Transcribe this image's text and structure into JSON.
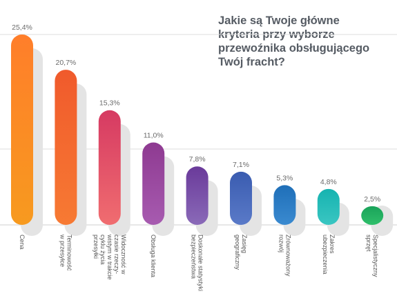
{
  "chart_data": {
    "type": "bar",
    "title_lines": [
      "Jakie są Twoje główne",
      "kryteria przy wyborze",
      "przewoźnika obsługującego",
      "Twój fracht?"
    ],
    "categories": [
      [
        "Cena"
      ],
      [
        "Terminowość",
        "w przesyłce"
      ],
      [
        "Widoczność w",
        "czasie rzeczy-",
        "wistym w trakcie",
        "cyklu życia",
        "przesyłki"
      ],
      [
        "Obsługa klienta"
      ],
      [
        "Doskonałe statystyki",
        "bezpieczeństwa"
      ],
      [
        "Zasięg",
        "geograficzny"
      ],
      [
        "Zrównoważony",
        "rozwój"
      ],
      [
        "Zakres",
        "ubezpieczenia"
      ],
      [
        "Specjalistyczny",
        "sprzęt"
      ]
    ],
    "values": [
      25.4,
      20.7,
      15.3,
      11.0,
      7.8,
      7.1,
      5.3,
      4.8,
      2.5
    ],
    "value_labels": [
      "25,4%",
      "20,7%",
      "15,3%",
      "11,0%",
      "7,8%",
      "7,1%",
      "5,3%",
      "4,8%",
      "2,5%"
    ],
    "ylim": [
      0,
      25.4
    ],
    "grid": true,
    "bar_colors": [
      [
        "#ff7e2a",
        "#f79a1f"
      ],
      [
        "#f05a2c",
        "#f77a33"
      ],
      [
        "#d63a62",
        "#f06d70"
      ],
      [
        "#8e3a91",
        "#a75bb0"
      ],
      [
        "#6a3a9a",
        "#8a6ab8"
      ],
      [
        "#3a5cb0",
        "#5a7ac8"
      ],
      [
        "#1f6fb8",
        "#3a8ad0"
      ],
      [
        "#16b3b0",
        "#3ac6c2"
      ],
      [
        "#1aa35a",
        "#2fbf6a"
      ]
    ],
    "shadow_color": "#e4e4e4",
    "grid_color": "#dcdcdc"
  }
}
